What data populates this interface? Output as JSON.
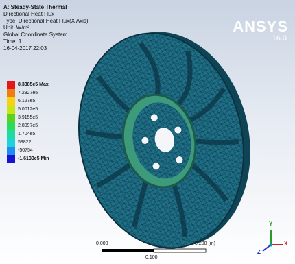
{
  "header": [
    "A: Steady-State Thermal",
    "Directional Heat Flux",
    "Type: Directional Heat Flux(X Axis)",
    "Unit: W/m²",
    "Global Coordinate System",
    "Time: 1",
    "16-04-2017 22:03"
  ],
  "logo": {
    "name": "ANSYS",
    "version": "16.0"
  },
  "legend": [
    "8.3385e5 Max",
    "7.2327e5",
    "6.127e5",
    "5.0012e5",
    "3.9155e5",
    "2.8097e5",
    "1.704e5",
    "59822",
    "-50754",
    "-1.6133e5 Min"
  ],
  "scale": {
    "start": "0.000",
    "end": "0.200 (m)",
    "mid": "0.100"
  },
  "triad": {
    "y": "Y",
    "z": "Z",
    "x": "X"
  }
}
